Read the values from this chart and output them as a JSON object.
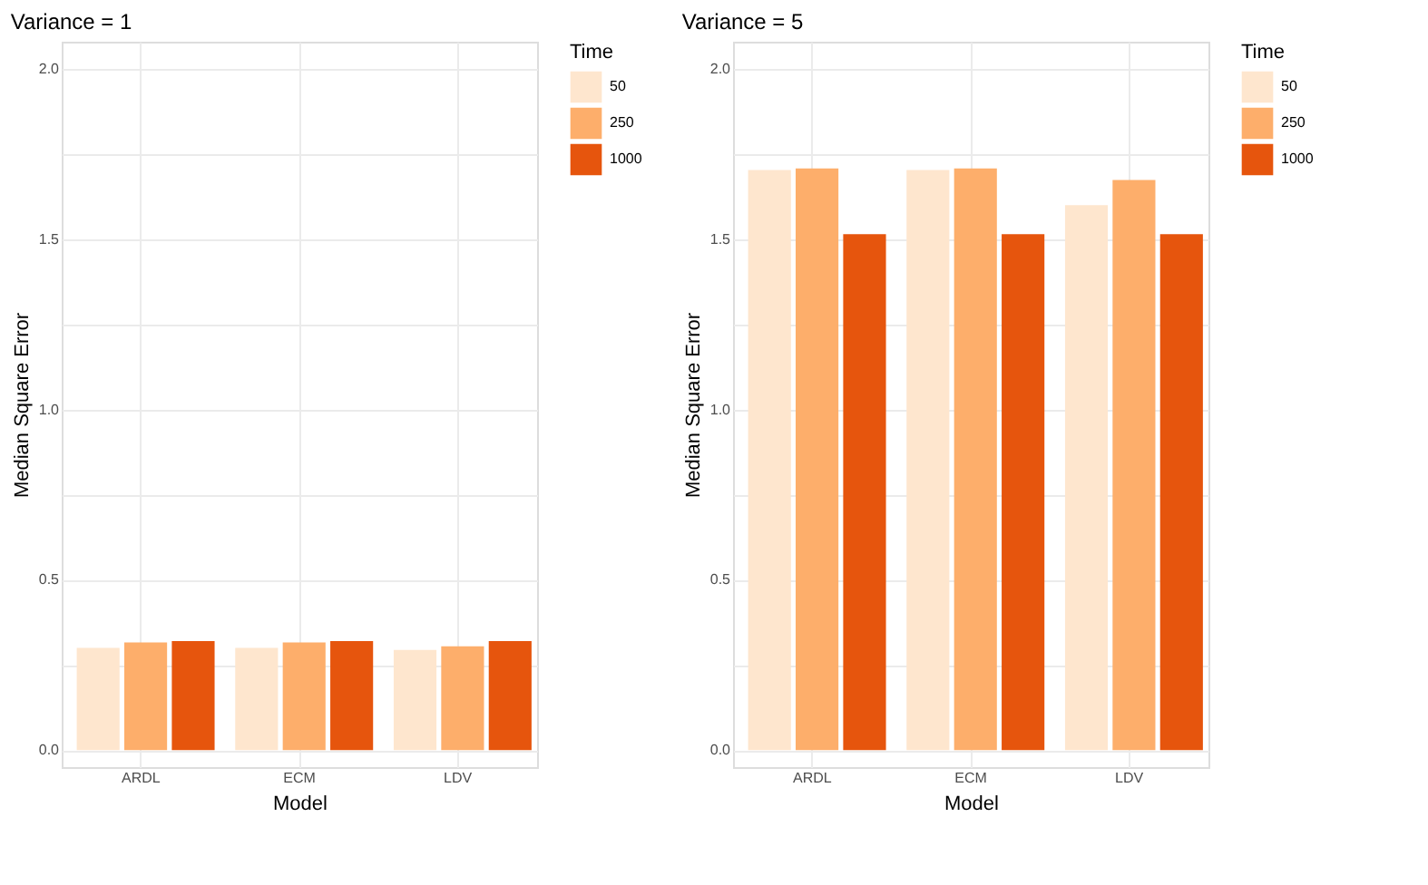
{
  "chart_data": [
    {
      "type": "bar",
      "title": "Variance = 1",
      "xlabel": "Model",
      "ylabel": "Median Square Error",
      "legend_title": "Time",
      "legend": "right",
      "grid": true,
      "categories": [
        "ARDL",
        "ECM",
        "LDV"
      ],
      "series": [
        {
          "name": "50",
          "color": "#fee6ce",
          "values": [
            0.3,
            0.3,
            0.294
          ]
        },
        {
          "name": "250",
          "color": "#fdae6b",
          "values": [
            0.316,
            0.316,
            0.305
          ]
        },
        {
          "name": "1000",
          "color": "#e6550d",
          "values": [
            0.32,
            0.32,
            0.32
          ]
        }
      ],
      "ylim": [
        -0.05,
        2.08
      ],
      "yticks": [
        {
          "value": 0,
          "label": "0.0"
        },
        {
          "value": 0.25,
          "label": null
        },
        {
          "value": 0.5,
          "label": "0.5"
        },
        {
          "value": 0.75,
          "label": null
        },
        {
          "value": 1,
          "label": "1.0"
        },
        {
          "value": 1.25,
          "label": null
        },
        {
          "value": 1.5,
          "label": "1.5"
        },
        {
          "value": 1.75,
          "label": null
        },
        {
          "value": 2,
          "label": "2.0"
        }
      ]
    },
    {
      "type": "bar",
      "title": "Variance = 5",
      "xlabel": "Model",
      "ylabel": "Median Square Error",
      "legend_title": "Time",
      "legend": "right",
      "grid": true,
      "categories": [
        "ARDL",
        "ECM",
        "LDV"
      ],
      "series": [
        {
          "name": "50",
          "color": "#fee6ce",
          "values": [
            1.703,
            1.703,
            1.6
          ]
        },
        {
          "name": "250",
          "color": "#fdae6b",
          "values": [
            1.708,
            1.708,
            1.674
          ]
        },
        {
          "name": "1000",
          "color": "#e6550d",
          "values": [
            1.515,
            1.515,
            1.515
          ]
        }
      ],
      "ylim": [
        -0.05,
        2.08
      ],
      "yticks": [
        {
          "value": 0,
          "label": "0.0"
        },
        {
          "value": 0.25,
          "label": null
        },
        {
          "value": 0.5,
          "label": "0.5"
        },
        {
          "value": 0.75,
          "label": null
        },
        {
          "value": 1,
          "label": "1.0"
        },
        {
          "value": 1.25,
          "label": null
        },
        {
          "value": 1.5,
          "label": "1.5"
        },
        {
          "value": 1.75,
          "label": null
        },
        {
          "value": 2,
          "label": "2.0"
        }
      ]
    }
  ]
}
